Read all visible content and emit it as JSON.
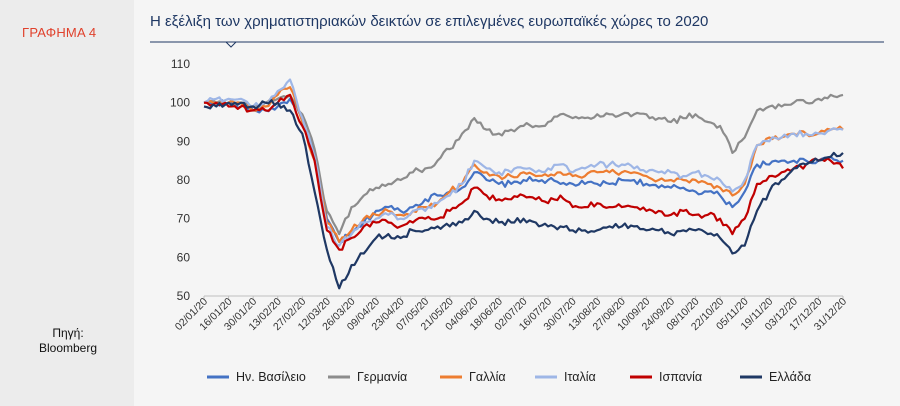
{
  "sidebar": {
    "label": "ΓΡΑΦΗΜΑ 4",
    "source_line1": "Πηγή:",
    "source_line2": "Bloomberg"
  },
  "colors": {
    "accent_red": "#e0412c",
    "title_navy": "#1f3864"
  },
  "chart_data": {
    "type": "line",
    "title": "Η εξέλιξη των χρηματιστηριακών δεικτών σε επιλεγμένες ευρωπαϊκές χώρες το 2020",
    "xlabel": "",
    "ylabel": "",
    "ylim": [
      50,
      110
    ],
    "yticks": [
      50,
      60,
      70,
      80,
      90,
      100,
      110
    ],
    "xticks": [
      "02/01/20",
      "16/01/20",
      "30/01/20",
      "13/02/20",
      "27/02/20",
      "12/03/20",
      "26/03/20",
      "09/04/20",
      "23/04/20",
      "07/05/20",
      "21/05/20",
      "04/06/20",
      "18/06/20",
      "02/07/20",
      "16/07/20",
      "30/07/20",
      "13/08/20",
      "27/08/20",
      "10/09/20",
      "24/09/20",
      "08/10/20",
      "22/10/20",
      "05/11/20",
      "19/11/20",
      "03/12/20",
      "17/12/20",
      "31/12/20"
    ],
    "grid": false,
    "legend_position": "bottom",
    "x": [
      "02/01/20",
      "09/01/20",
      "16/01/20",
      "23/01/20",
      "30/01/20",
      "06/02/20",
      "13/02/20",
      "20/02/20",
      "27/02/20",
      "05/03/20",
      "12/03/20",
      "19/03/20",
      "26/03/20",
      "02/04/20",
      "09/04/20",
      "16/04/20",
      "23/04/20",
      "30/04/20",
      "07/05/20",
      "14/05/20",
      "21/05/20",
      "28/05/20",
      "04/06/20",
      "11/06/20",
      "18/06/20",
      "25/06/20",
      "02/07/20",
      "09/07/20",
      "16/07/20",
      "23/07/20",
      "30/07/20",
      "06/08/20",
      "13/08/20",
      "20/08/20",
      "27/08/20",
      "03/09/20",
      "10/09/20",
      "17/09/20",
      "24/09/20",
      "01/10/20",
      "08/10/20",
      "15/10/20",
      "22/10/20",
      "29/10/20",
      "05/11/20",
      "12/11/20",
      "19/11/20",
      "26/11/20",
      "03/12/20",
      "10/12/20",
      "17/12/20",
      "24/12/20",
      "31/12/20"
    ],
    "series": [
      {
        "name": "Ην. Βασίλειο",
        "color": "#4472c4",
        "values": [
          100,
          100,
          100,
          99,
          98,
          98,
          99,
          101,
          96,
          87,
          70,
          64,
          66,
          69,
          72,
          73,
          72,
          73,
          75,
          76,
          77,
          78,
          82,
          80,
          79,
          79,
          80,
          80,
          80,
          79,
          79,
          79,
          79,
          79,
          80,
          80,
          79,
          78,
          78,
          78,
          77,
          77,
          76,
          73,
          77,
          84,
          84,
          85,
          85,
          85,
          85,
          86,
          85
        ]
      },
      {
        "name": "Γερμανία",
        "color": "#8c8c8c",
        "values": [
          100,
          100,
          100,
          100,
          99,
          100,
          101,
          102,
          97,
          88,
          72,
          66,
          73,
          76,
          78,
          79,
          80,
          82,
          83,
          85,
          88,
          92,
          96,
          93,
          92,
          93,
          94,
          94,
          95,
          97,
          96,
          96,
          97,
          97,
          97,
          97,
          97,
          96,
          95,
          96,
          97,
          95,
          94,
          87,
          91,
          98,
          99,
          99,
          100,
          100,
          101,
          102,
          102
        ]
      },
      {
        "name": "Γαλλία",
        "color": "#ed7d31",
        "values": [
          100,
          100,
          100,
          100,
          98,
          99,
          102,
          104,
          95,
          85,
          69,
          64,
          67,
          70,
          71,
          72,
          71,
          72,
          73,
          74,
          77,
          79,
          84,
          82,
          81,
          81,
          82,
          81,
          81,
          82,
          81,
          81,
          82,
          82,
          82,
          82,
          81,
          80,
          80,
          80,
          80,
          79,
          78,
          76,
          79,
          89,
          91,
          91,
          92,
          92,
          92,
          93,
          93
        ]
      },
      {
        "name": "Ιταλία",
        "color": "#9eb6e6",
        "values": [
          100,
          101,
          101,
          101,
          99,
          100,
          103,
          106,
          96,
          86,
          68,
          63,
          66,
          69,
          70,
          71,
          70,
          72,
          72,
          74,
          76,
          79,
          85,
          83,
          82,
          82,
          83,
          82,
          83,
          84,
          82,
          83,
          84,
          84,
          84,
          83,
          82,
          82,
          82,
          81,
          82,
          81,
          80,
          77,
          80,
          89,
          90,
          91,
          92,
          92,
          92,
          93,
          93
        ]
      },
      {
        "name": "Ισπανία",
        "color": "#c00000",
        "values": [
          100,
          100,
          99,
          99,
          98,
          98,
          100,
          102,
          94,
          85,
          67,
          62,
          65,
          68,
          69,
          69,
          68,
          69,
          70,
          70,
          72,
          74,
          78,
          76,
          75,
          75,
          76,
          75,
          74,
          76,
          73,
          73,
          74,
          73,
          73,
          73,
          72,
          72,
          71,
          72,
          71,
          71,
          70,
          66,
          70,
          79,
          81,
          82,
          83,
          84,
          85,
          85,
          83
        ]
      },
      {
        "name": "Ελλάδα",
        "color": "#1f3864",
        "values": [
          99,
          99,
          100,
          100,
          99,
          100,
          100,
          98,
          92,
          77,
          62,
          52,
          58,
          61,
          65,
          66,
          65,
          67,
          67,
          68,
          68,
          69,
          72,
          70,
          69,
          69,
          70,
          69,
          68,
          68,
          67,
          67,
          67,
          68,
          68,
          68,
          67,
          67,
          66,
          67,
          67,
          66,
          65,
          61,
          63,
          72,
          77,
          80,
          83,
          84,
          85,
          86,
          87
        ]
      }
    ]
  }
}
